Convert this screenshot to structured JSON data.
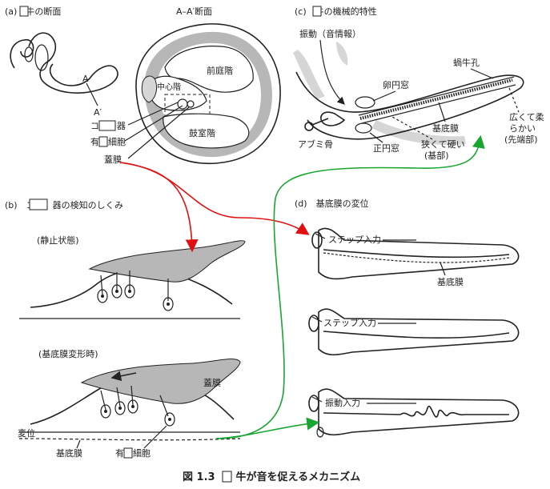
{
  "panel_a": {
    "header": "(a)　牛の断面",
    "section_title": "A–A′断面",
    "mark_a": "A",
    "mark_a_prime": "A′",
    "scala_vestibuli": "前庭階",
    "scala_media": "中心階",
    "scala_tympani": "鼓室階",
    "organ": "コ　　器",
    "hair_cell": "有　細胞",
    "tectorial": "蓋膜"
  },
  "panel_b": {
    "header": "(b)　コ　　器の検知のしくみ",
    "state_rest": "(静止状態)",
    "state_deform": "(基底膜変形時)",
    "tectorial": "蓋膜",
    "displacement": "変位",
    "basilar": "基底膜",
    "hair_cell": "有　細胞"
  },
  "panel_c": {
    "header": "(c)　牛の機械的特性",
    "vibration": "振動（音情報）",
    "oval_window": "卵円窓",
    "helicotrema": "蝸牛孔",
    "wide_soft": "広くて柔",
    "wide_soft2": "らかい",
    "apex": "(先端部)",
    "basilar": "基底膜",
    "stapes": "アブミ骨",
    "round_window": "正円窓",
    "narrow_hard": "狭くて硬い",
    "base": "(基部)"
  },
  "panel_d": {
    "header": "(d)　基底膜の変位",
    "step_input_1": "ステップ入力",
    "basilar": "基底膜",
    "step_input_2": "ステップ入力",
    "vibration_input": "振動入力"
  },
  "caption": "図 1.3　　牛が音を促えるメカニズム",
  "colors": {
    "red_arrow": "#e01010",
    "green_arrow": "#19a531",
    "membrane_gray": "#b7b7b7"
  }
}
